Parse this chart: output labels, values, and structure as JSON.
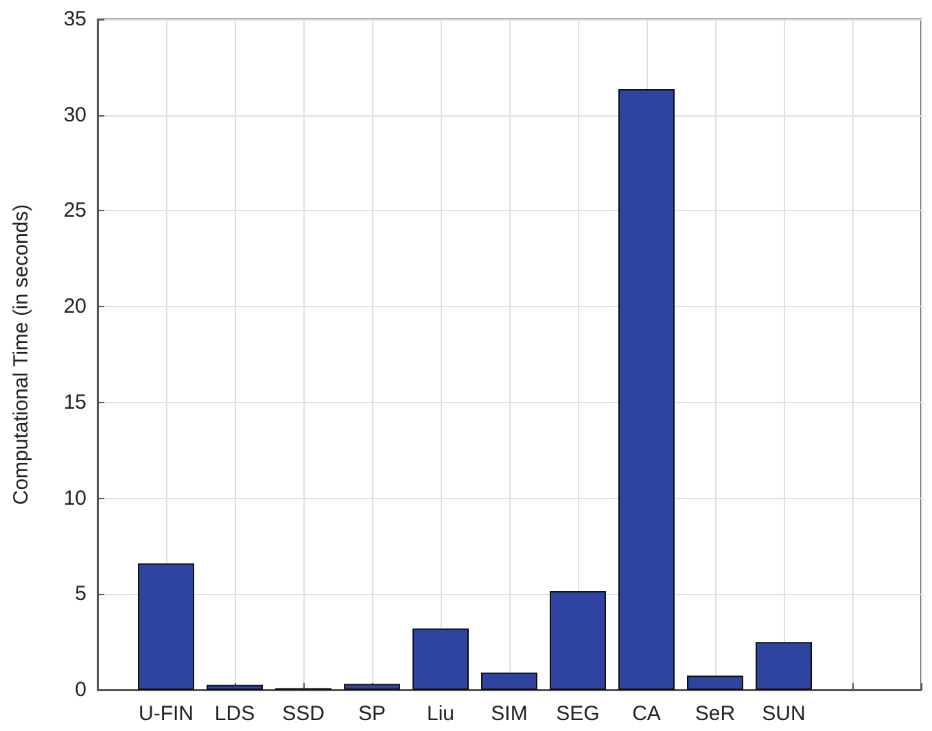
{
  "chart_data": {
    "type": "bar",
    "ylabel": "Computational Time (in seconds)",
    "categories": [
      null,
      "U-FIN",
      "LDS",
      "SSD",
      "SP",
      "Liu",
      "SIM",
      "SEG",
      "CA",
      "SeR",
      "SUN",
      null,
      null
    ],
    "values": [
      null,
      6.6,
      0.26,
      0.09,
      0.31,
      3.2,
      0.9,
      5.15,
      31.35,
      0.74,
      2.5,
      null,
      null
    ],
    "color": "#2e44a0",
    "ylim": [
      0,
      35
    ],
    "yticks": [
      0,
      5,
      10,
      15,
      20,
      25,
      30,
      35
    ],
    "grid": true
  }
}
